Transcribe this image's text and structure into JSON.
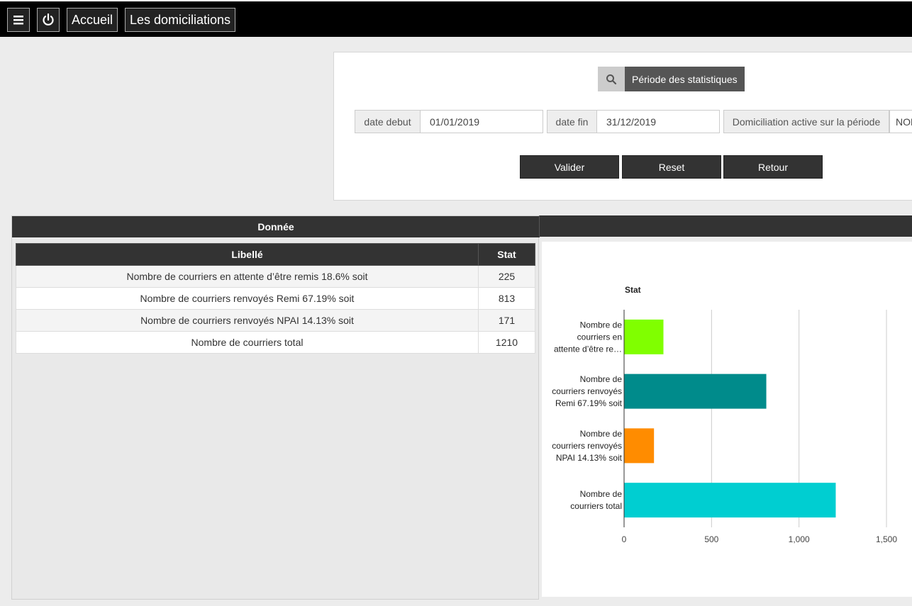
{
  "nav": {
    "accueil_label": "Accueil",
    "domiciliations_label": "Les domiciliations"
  },
  "filters": {
    "period_label": "Période des statistiques",
    "date_debut_label": "date debut",
    "date_debut_value": "01/01/2019",
    "date_fin_label": "date fin",
    "date_fin_value": "31/12/2019",
    "active_label": "Domiciliation active sur la période",
    "active_value": "NON",
    "valider_label": "Valider",
    "reset_label": "Reset",
    "retour_label": "Retour"
  },
  "data_panel": {
    "title": "Donnée",
    "columns": [
      "Libellé",
      "Stat"
    ],
    "rows": [
      {
        "label": "Nombre de courriers en attente d’être remis 18.6% soit",
        "value": "225"
      },
      {
        "label": "Nombre de courriers renvoyés Remi  67.19% soit",
        "value": "813"
      },
      {
        "label": "Nombre de courriers renvoyés NPAI 14.13% soit",
        "value": "171"
      },
      {
        "label": "Nombre de courriers total",
        "value": "1210"
      }
    ]
  },
  "chart_data": {
    "type": "bar",
    "orientation": "horizontal",
    "title": "Stat",
    "categories": [
      "Nombre de courriers en attente d’être remis 18.6% soit",
      "Nombre de courriers renvoyés Remi  67.19% soit",
      "Nombre de courriers renvoyés NPAI 14.13% soit",
      "Nombre de courriers total"
    ],
    "category_display": [
      [
        "Nombre de",
        "courriers en",
        "attente d’être re…"
      ],
      [
        "Nombre de",
        "courriers renvoyés",
        "Remi  67.19% soit"
      ],
      [
        "Nombre de",
        "courriers renvoyés",
        "NPAI 14.13% soit"
      ],
      [
        "Nombre de",
        "courriers total"
      ]
    ],
    "values": [
      225,
      813,
      171,
      1210
    ],
    "colors": [
      "#80ff00",
      "#008b8b",
      "#ff8c00",
      "#00ced1"
    ],
    "xlim": [
      0,
      1500
    ],
    "xticks": [
      0,
      500,
      1000,
      1500
    ],
    "xtick_labels": [
      "0",
      "500",
      "1,000",
      "1,500"
    ],
    "grid": true
  }
}
